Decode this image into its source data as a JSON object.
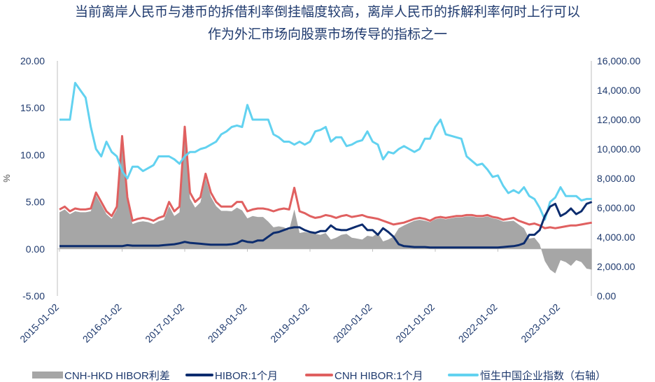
{
  "title_line1": "当前离岸人民币与港币的拆借利率倒挂幅度较高，离岸人民币的拆解利率何时上行可以",
  "title_line2": "作为外汇市场向股票市场传导的指标之一",
  "colors": {
    "spread": "#a6a6a6",
    "hibor": "#0c2c6e",
    "cnh": "#e06060",
    "hscei": "#62d2f0",
    "axis_text": "#1f3a6e"
  },
  "chart_data": {
    "type": "line",
    "ylabel": "%",
    "ylim": [
      -5,
      20
    ],
    "yticks": [
      "20.00",
      "15.00",
      "10.00",
      "5.00",
      "0.00",
      "-5.00"
    ],
    "y2lim": [
      0,
      16000
    ],
    "y2ticks": [
      "16,000.00",
      "14,000.00",
      "12,000.00",
      "10,000.00",
      "8,000.00",
      "6,000.00",
      "4,000.00",
      "2,000.00",
      "0.00"
    ],
    "xticks": [
      "2015-01-02",
      "2016-01-02",
      "2017-01-02",
      "2018-01-02",
      "2019-01-02",
      "2020-01-02",
      "2021-01-02",
      "2022-01-02",
      "2023-01-02"
    ],
    "x_start": "2015-01",
    "x_step": "month",
    "legend_position": "bottom",
    "series": [
      {
        "name": "CNH-HKD HIBOR利差",
        "type": "area",
        "axis": "left",
        "values": [
          3.9,
          4.2,
          3.7,
          4.0,
          3.9,
          3.9,
          4.0,
          5.7,
          4.7,
          3.7,
          3.2,
          4.2,
          11.7,
          5.1,
          2.65,
          2.85,
          2.95,
          2.85,
          2.65,
          2.95,
          3.1,
          4.55,
          3.5,
          3.9,
          12.25,
          5.35,
          4.4,
          4.95,
          7.5,
          5.55,
          4.55,
          4.05,
          4.05,
          4.0,
          4.4,
          4.1,
          3.25,
          3.5,
          3.4,
          3.4,
          2.9,
          2.3,
          2.4,
          2.3,
          2.0,
          4.2,
          1.7,
          1.8,
          1.7,
          1.6,
          1.5,
          1.7,
          1.0,
          1.2,
          1.5,
          1.6,
          1.2,
          1.1,
          1.0,
          1.4,
          1.3,
          1.7,
          0.8,
          1.0,
          1.3,
          2.2,
          2.5,
          2.75,
          3.0,
          3.1,
          3.0,
          2.85,
          3.15,
          3.25,
          3.15,
          3.25,
          3.35,
          3.35,
          3.45,
          3.45,
          3.35,
          3.35,
          3.45,
          3.25,
          3.15,
          2.9,
          2.95,
          3.0,
          2.6,
          2.2,
          1.1,
          1.2,
          0.5,
          -1.3,
          -2.2,
          -2.6,
          -1.2,
          -1.4,
          -1.8,
          -1.2,
          -1.4,
          -2.1,
          -2.2
        ]
      },
      {
        "name": "HIBOR:1个月",
        "type": "line",
        "axis": "left",
        "values": [
          0.3,
          0.3,
          0.3,
          0.3,
          0.3,
          0.3,
          0.3,
          0.3,
          0.3,
          0.3,
          0.3,
          0.3,
          0.3,
          0.4,
          0.35,
          0.35,
          0.35,
          0.35,
          0.35,
          0.35,
          0.4,
          0.45,
          0.5,
          0.6,
          0.75,
          0.65,
          0.6,
          0.55,
          0.5,
          0.45,
          0.45,
          0.45,
          0.45,
          0.5,
          0.6,
          0.9,
          0.75,
          0.7,
          0.9,
          0.9,
          1.3,
          1.7,
          1.8,
          2.0,
          2.2,
          2.3,
          2.3,
          2.0,
          1.8,
          1.7,
          1.9,
          1.9,
          2.5,
          2.1,
          2.0,
          2.0,
          2.2,
          2.4,
          2.6,
          2.0,
          2.0,
          1.5,
          2.2,
          1.8,
          1.3,
          0.5,
          0.3,
          0.25,
          0.2,
          0.2,
          0.2,
          0.15,
          0.15,
          0.15,
          0.15,
          0.15,
          0.15,
          0.15,
          0.15,
          0.15,
          0.15,
          0.15,
          0.15,
          0.15,
          0.15,
          0.2,
          0.25,
          0.3,
          0.4,
          0.6,
          1.5,
          1.5,
          2.0,
          3.5,
          4.5,
          4.8,
          3.5,
          3.8,
          4.3,
          3.7,
          4.0,
          4.8,
          5.0
        ]
      },
      {
        "name": "CNH HIBOR:1个月",
        "type": "line",
        "axis": "left",
        "values": [
          4.2,
          4.5,
          4.0,
          4.3,
          4.2,
          4.2,
          4.3,
          6.0,
          5.0,
          4.0,
          3.5,
          4.5,
          12.0,
          5.5,
          3.0,
          3.2,
          3.3,
          3.2,
          3.0,
          3.3,
          3.5,
          5.0,
          4.0,
          4.5,
          13.0,
          6.0,
          5.0,
          5.5,
          8.0,
          6.0,
          5.0,
          4.5,
          4.5,
          4.5,
          5.0,
          5.0,
          4.0,
          4.2,
          4.3,
          4.3,
          4.2,
          4.0,
          4.2,
          4.3,
          4.2,
          6.5,
          4.0,
          3.8,
          3.5,
          3.3,
          3.4,
          3.6,
          3.5,
          3.3,
          3.5,
          3.6,
          3.4,
          3.5,
          3.6,
          3.4,
          3.3,
          3.2,
          3.0,
          2.8,
          2.6,
          2.7,
          2.8,
          3.0,
          3.2,
          3.3,
          3.2,
          3.0,
          3.3,
          3.4,
          3.3,
          3.4,
          3.5,
          3.5,
          3.6,
          3.6,
          3.5,
          3.5,
          3.6,
          3.4,
          3.3,
          3.1,
          3.2,
          3.3,
          3.0,
          2.8,
          2.6,
          2.7,
          2.5,
          2.2,
          2.3,
          2.2,
          2.3,
          2.4,
          2.5,
          2.5,
          2.6,
          2.7,
          2.8
        ]
      },
      {
        "name": "恒生中国企业指数（右轴）",
        "type": "line",
        "axis": "right",
        "values": [
          12000,
          12000,
          12000,
          14500,
          14000,
          13500,
          11500,
          10000,
          9500,
          10500,
          9800,
          9500,
          8500,
          8000,
          8800,
          8800,
          8500,
          8700,
          8900,
          9500,
          9500,
          9500,
          9300,
          9000,
          9500,
          9800,
          9800,
          10000,
          10100,
          10300,
          10500,
          11000,
          11200,
          11500,
          11600,
          11500,
          13000,
          12000,
          12000,
          12000,
          12000,
          11000,
          10800,
          10500,
          10500,
          10300,
          10500,
          10300,
          10500,
          11200,
          11300,
          11500,
          10500,
          10800,
          10800,
          10200,
          10300,
          10500,
          10600,
          11200,
          10500,
          10300,
          9300,
          9800,
          9700,
          10000,
          10200,
          10000,
          9800,
          10000,
          10700,
          10700,
          11500,
          12000,
          11000,
          10900,
          10800,
          10700,
          9500,
          9200,
          8900,
          9000,
          8600,
          8100,
          8200,
          7500,
          7000,
          7200,
          7000,
          7400,
          6800,
          6600,
          6000,
          5200,
          6400,
          6700,
          7400,
          6800,
          6800,
          6800,
          6500,
          6600,
          6600
        ]
      }
    ]
  },
  "legend": [
    "CNH-HKD HIBOR利差",
    "HIBOR:1个月",
    "CNH HIBOR:1个月",
    "恒生中国企业指数（右轴）"
  ]
}
